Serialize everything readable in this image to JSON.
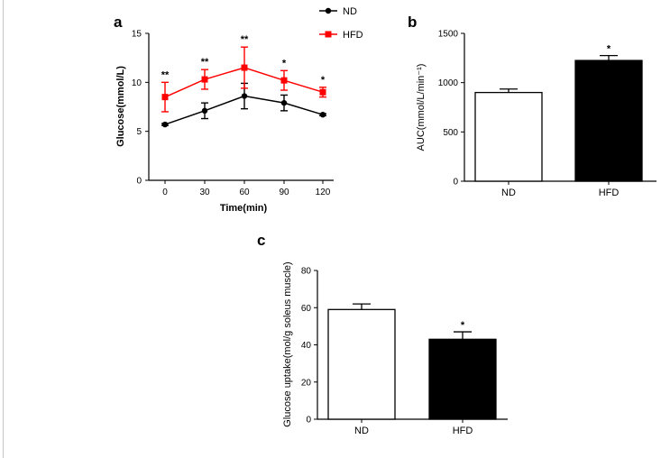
{
  "panels": {
    "a": "a",
    "b": "b",
    "c": "c"
  },
  "chart_data": [
    {
      "panel": "a",
      "type": "line",
      "xlabel": "Time(min)",
      "ylabel": "Glucose(mmol/L)",
      "x": [
        0,
        30,
        60,
        90,
        120
      ],
      "xticks": [
        "0",
        "30",
        "60",
        "90",
        "120"
      ],
      "ylim": [
        0,
        15
      ],
      "yticks": [
        "0",
        "5",
        "10",
        "15"
      ],
      "significance": [
        "**",
        "**",
        "**",
        "*",
        "*"
      ],
      "legend_position": "top-right",
      "series": [
        {
          "name": "ND",
          "color": "#000000",
          "marker": "circle",
          "values": [
            5.7,
            7.1,
            8.6,
            7.9,
            6.7
          ],
          "errors": [
            0.1,
            0.8,
            1.3,
            0.8,
            0.1
          ]
        },
        {
          "name": "HFD",
          "color": "#ff0000",
          "marker": "square",
          "values": [
            8.5,
            10.3,
            11.5,
            10.2,
            9.0
          ],
          "errors": [
            1.5,
            1.0,
            2.1,
            1.0,
            0.5
          ]
        }
      ]
    },
    {
      "panel": "b",
      "type": "bar",
      "ylabel": "AUC(mmol/L/min⁻¹)",
      "categories": [
        "ND",
        "HFD"
      ],
      "values": [
        900,
        1225
      ],
      "errors": [
        35,
        50
      ],
      "fills": [
        "#ffffff",
        "#000000"
      ],
      "ylim": [
        0,
        1500
      ],
      "yticks": [
        "0",
        "500",
        "1000",
        "1500"
      ],
      "significance": [
        "",
        "*"
      ]
    },
    {
      "panel": "c",
      "type": "bar",
      "ylabel": "Glucose uptake(mol/g soleus muscle)",
      "categories": [
        "ND",
        "HFD"
      ],
      "values": [
        59,
        43
      ],
      "errors": [
        3,
        4
      ],
      "fills": [
        "#ffffff",
        "#000000"
      ],
      "ylim": [
        0,
        80
      ],
      "yticks": [
        "0",
        "20",
        "40",
        "60",
        "80"
      ],
      "significance": [
        "",
        "*"
      ]
    }
  ]
}
